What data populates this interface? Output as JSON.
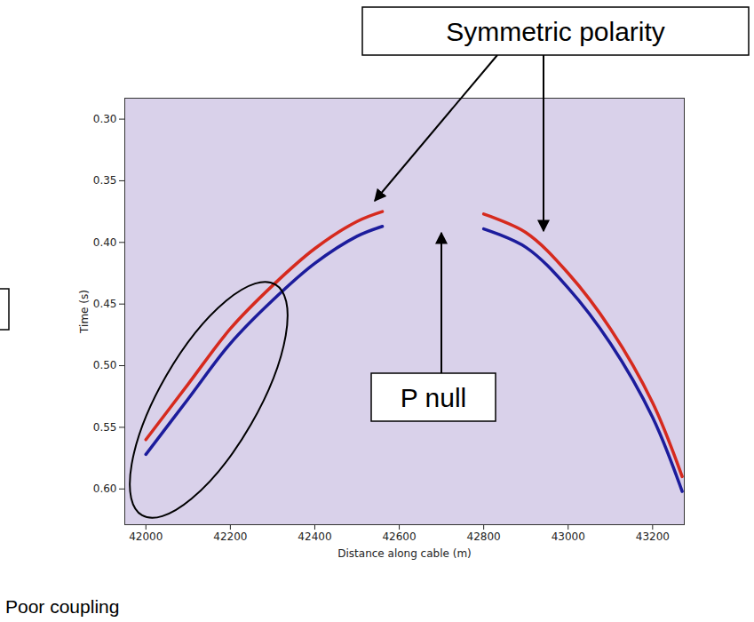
{
  "chart_data": {
    "type": "line",
    "x_label": "Distance along cable (m)",
    "y_label": "Time (s)",
    "x": [
      42000,
      42100,
      42200,
      42300,
      42400,
      42500,
      42560,
      42680,
      42800,
      42900,
      43000,
      43100,
      43200,
      43270
    ],
    "series": [
      {
        "color": "#d62a1e",
        "values": [
          0.56,
          0.515,
          0.47,
          0.435,
          0.405,
          0.383,
          0.375,
          null,
          0.377,
          0.392,
          0.425,
          0.47,
          0.53,
          0.59
        ]
      },
      {
        "color": "#1c1c9c",
        "values": [
          0.572,
          0.527,
          0.482,
          0.447,
          0.417,
          0.395,
          0.387,
          null,
          0.389,
          0.404,
          0.437,
          0.482,
          0.542,
          0.602
        ]
      }
    ],
    "xlim": [
      41950,
      43275
    ],
    "ylim": [
      0.283,
      0.629
    ],
    "xticks": [
      42000,
      42200,
      42400,
      42600,
      42800,
      43000,
      43200
    ],
    "yticks": [
      {
        "value": 0.3,
        "label": "0.30"
      },
      {
        "value": 0.35,
        "label": "0.35"
      },
      {
        "value": 0.4,
        "label": "0.40"
      },
      {
        "value": 0.45,
        "label": "0.45"
      },
      {
        "value": 0.5,
        "label": "0.50"
      },
      {
        "value": 0.55,
        "label": "0.55"
      },
      {
        "value": 0.6,
        "label": "0.60"
      }
    ],
    "grid": false,
    "annotations": [
      "Symmetric polarity",
      "P null",
      "Poor coupling"
    ]
  }
}
